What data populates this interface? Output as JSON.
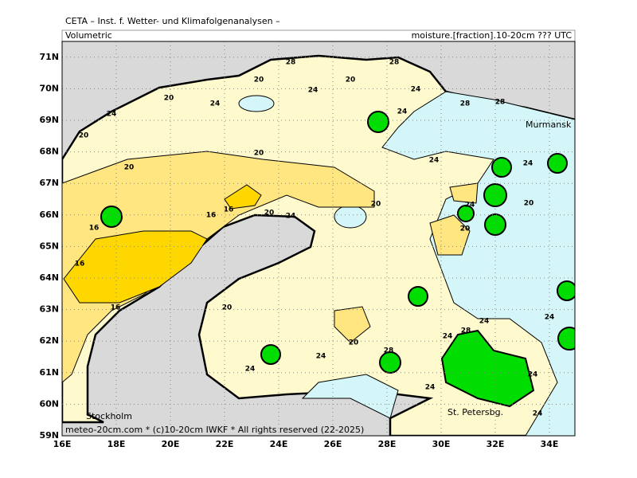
{
  "header": {
    "institute": "CETA – Inst. f. Wetter- und Klimafolgenanalysen –",
    "quantity": "Volumetric",
    "field": "moisture.[fraction].10-20cm ??? UTC"
  },
  "map": {
    "lon_ticks": [
      {
        "value": 16,
        "label": "16E"
      },
      {
        "value": 18,
        "label": "18E"
      },
      {
        "value": 20,
        "label": "20E"
      },
      {
        "value": 22,
        "label": "22E"
      },
      {
        "value": 24,
        "label": "24E"
      },
      {
        "value": 26,
        "label": "26E"
      },
      {
        "value": 28,
        "label": "28E"
      },
      {
        "value": 30,
        "label": "30E"
      },
      {
        "value": 32,
        "label": "32E"
      },
      {
        "value": 34,
        "label": "34E"
      }
    ],
    "lat_ticks": [
      {
        "value": 59,
        "label": "59N"
      },
      {
        "value": 60,
        "label": "60N"
      },
      {
        "value": 61,
        "label": "61N"
      },
      {
        "value": 62,
        "label": "62N"
      },
      {
        "value": 63,
        "label": "63N"
      },
      {
        "value": 64,
        "label": "64N"
      },
      {
        "value": 65,
        "label": "65N"
      },
      {
        "value": 66,
        "label": "66N"
      },
      {
        "value": 67,
        "label": "67N"
      },
      {
        "value": 68,
        "label": "68N"
      },
      {
        "value": 69,
        "label": "69N"
      },
      {
        "value": 70,
        "label": "70N"
      },
      {
        "value": 71,
        "label": "71N"
      }
    ],
    "places": [
      "Murmansk",
      "Stockholm",
      "St. Petersbg."
    ],
    "contour_labels": [
      28,
      28,
      20,
      20,
      24,
      24,
      20,
      24,
      28,
      28,
      24,
      24,
      20,
      20,
      24,
      20,
      24,
      20,
      16,
      16,
      20,
      24,
      24,
      20,
      16,
      20,
      16,
      16,
      20,
      20,
      24,
      24,
      24,
      28,
      24,
      24,
      28,
      24,
      24,
      24
    ]
  },
  "footer": "meteo-20cm.com * (c)10-20cm IWKF * All rights reserved (22-2025)"
}
